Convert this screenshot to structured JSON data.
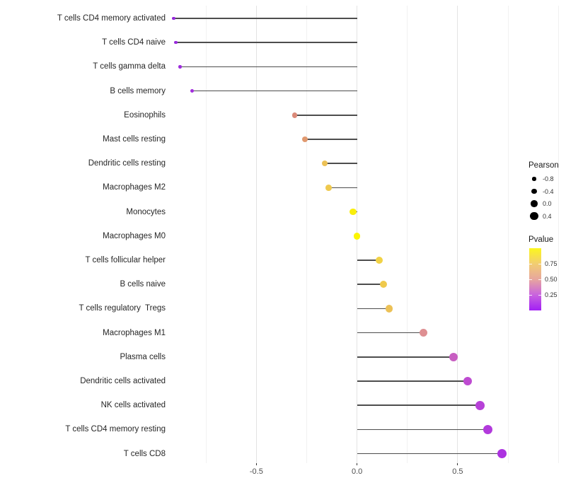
{
  "figure": {
    "background": "#FFFFFF"
  },
  "chart_data": {
    "type": "lollipop",
    "orientation": "horizontal",
    "title": "",
    "xlabel": "",
    "ylabel": "",
    "categories": [
      "T cells CD4 memory activated",
      "T cells CD4 naive",
      "T cells gamma delta",
      "B cells memory",
      "Eosinophils",
      "Mast cells resting",
      "Dendritic cells resting",
      "Macrophages M2",
      "Monocytes",
      "Macrophages M0",
      "T cells follicular helper",
      "B cells naive",
      "T cells regulatory  Tregs",
      "Macrophages M1",
      "Plasma cells",
      "Dendritic cells activated",
      "NK cells activated",
      "T cells CD4 memory resting",
      "T cells CD8"
    ],
    "series": [
      {
        "name": "Pearson",
        "values": [
          -0.91,
          -0.9,
          -0.88,
          -0.82,
          -0.31,
          -0.26,
          -0.16,
          -0.14,
          -0.02,
          0.0,
          0.11,
          0.13,
          0.16,
          0.33,
          0.48,
          0.55,
          0.61,
          0.65,
          0.72
        ]
      }
    ],
    "point_colors": [
      "#9427DA",
      "#9829DB",
      "#9D2BDC",
      "#A22EDD",
      "#DB8A79",
      "#E0996F",
      "#ECC156",
      "#EFC94E",
      "#F9EE0C",
      "#FCF500",
      "#F1D245",
      "#EFC94C",
      "#ECC156",
      "#DE8F92",
      "#C75EC1",
      "#BE4BD1",
      "#B741D8",
      "#B23ADC",
      "#AC32E0"
    ],
    "stem_color": "#4d4d4d",
    "baseline_x": 0,
    "xlim": [
      -0.93,
      1.01
    ],
    "x_ticks": [
      -0.5,
      0.0,
      0.5
    ],
    "x_tick_labels": [
      "-0.5",
      "0.0",
      "0.5"
    ],
    "x_minor_ticks": [
      -0.75,
      -0.25,
      0.25,
      0.75,
      1.0
    ],
    "grid": "vertical-only",
    "legend": {
      "position": "right",
      "size_legend": {
        "title": "Pearson",
        "entries": [
          {
            "label": "-0.8",
            "value": -0.8
          },
          {
            "label": "-0.4",
            "value": -0.4
          },
          {
            "label": "0.0",
            "value": 0.0
          },
          {
            "label": "0.4",
            "value": 0.4
          }
        ]
      },
      "color_legend": {
        "title": "Pvalue",
        "tick_labels": [
          "0.75",
          "0.50",
          "0.25"
        ],
        "tick_values": [
          0.75,
          0.5,
          0.25
        ],
        "range": [
          0.0,
          1.0
        ],
        "gradient_top_to_bottom": [
          "#FCF71C",
          "#F2CD72",
          "#E7A69E",
          "#C963DF",
          "#A21FF4"
        ]
      }
    }
  },
  "colors": {
    "grid_major": "#E3E3E3",
    "grid_minor": "#F1F1F1",
    "axis_text": "#4D4D4D",
    "category_text": "#262626",
    "tick_mark": "#333333",
    "legend_dot": "#000000"
  }
}
